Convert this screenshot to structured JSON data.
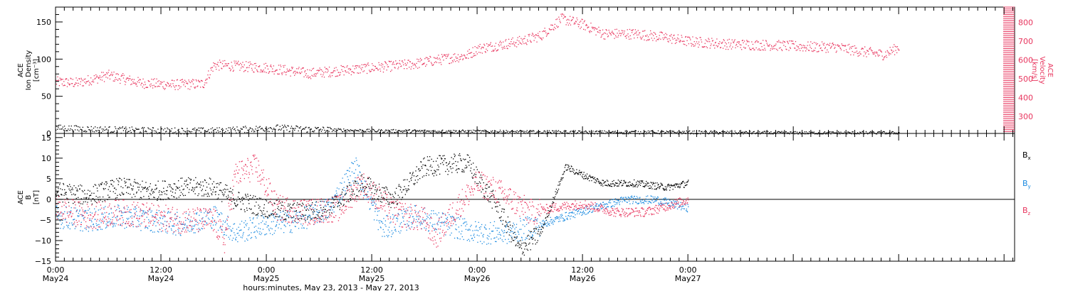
{
  "chart_data": [
    {
      "type": "scatter",
      "panel": "top",
      "ylabel_lines": [
        "ACE",
        "Ion Density",
        "[cm⁻³]"
      ],
      "ylim": [
        0,
        170
      ],
      "y_ticks": [
        "0",
        "50",
        "100",
        "150"
      ],
      "y2label_lines": [
        "ACE",
        "Velocity",
        "[km/s]"
      ],
      "y2lim": [
        210,
        880
      ],
      "y2_ticks": [
        "300",
        "400",
        "500",
        "600",
        "700",
        "800"
      ],
      "x_days_range": [
        0,
        4.55
      ],
      "series": [
        {
          "name": "",
          "color": "#e8355e",
          "axis": "right",
          "x": [
            0.0,
            0.1,
            0.25,
            0.4,
            0.55,
            0.7,
            0.75,
            1.0,
            1.2,
            1.35,
            1.5,
            1.7,
            1.8,
            1.95,
            2.0,
            2.2,
            2.3,
            2.4,
            2.5,
            2.6,
            2.75,
            2.9,
            3.0,
            3.2,
            3.4,
            3.6,
            3.7,
            3.8,
            3.93,
            4.0
          ],
          "y": [
            485,
            480,
            520,
            480,
            470,
            475,
            575,
            560,
            530,
            545,
            560,
            580,
            600,
            625,
            660,
            700,
            730,
            820,
            790,
            740,
            740,
            720,
            700,
            685,
            680,
            670,
            670,
            650,
            630,
            670
          ]
        },
        {
          "name": "",
          "color": "#000000",
          "axis": "left",
          "x": [
            0.0,
            0.2,
            0.5,
            0.75,
            1.05,
            1.2,
            1.5,
            2.0,
            2.5,
            3.0,
            3.5,
            4.0
          ],
          "y": [
            8,
            6,
            4,
            4,
            8,
            6,
            4,
            3,
            2,
            2,
            1,
            1
          ]
        }
      ]
    },
    {
      "type": "scatter",
      "panel": "bottom",
      "ylabel_lines": [
        "ACE",
        "B",
        "[nT]"
      ],
      "ylim": [
        -15,
        16
      ],
      "y_ticks": [
        "−15",
        "−10",
        "−5",
        "0",
        "5",
        "10",
        "15"
      ],
      "x_days_range": [
        0,
        4.55
      ],
      "x_tick_labels": [
        {
          "day": 0,
          "line1": "0:00",
          "line2": "May24"
        },
        {
          "day": 0.5,
          "line1": "12:00",
          "line2": "May24"
        },
        {
          "day": 1,
          "line1": "0:00",
          "line2": "May25"
        },
        {
          "day": 1.5,
          "line1": "12:00",
          "line2": "May25"
        },
        {
          "day": 2,
          "line1": "0:00",
          "line2": "May26"
        },
        {
          "day": 2.5,
          "line1": "12:00",
          "line2": "May26"
        },
        {
          "day": 3,
          "line1": "0:00",
          "line2": "May27"
        }
      ],
      "xlabel": "hours:minutes, May 23, 2013 - May 27, 2013",
      "legend": [
        "Bx",
        "By",
        "Bz"
      ],
      "series": [
        {
          "name": "Bx",
          "color": "#000000",
          "x": [
            0.0,
            0.15,
            0.3,
            0.45,
            0.6,
            0.75,
            0.85,
            1.0,
            1.1,
            1.2,
            1.3,
            1.45,
            1.6,
            1.75,
            1.95,
            2.1,
            2.2,
            2.3,
            2.42,
            2.5,
            2.6,
            2.75,
            2.9,
            3.0
          ],
          "y": [
            2,
            1,
            3,
            2,
            3,
            3,
            0,
            -2,
            -3,
            -3,
            -2,
            4,
            0,
            8,
            9,
            -2,
            -12,
            -8,
            8,
            6,
            4,
            4,
            3,
            4
          ]
        },
        {
          "name": "By",
          "color": "#1a8ae0",
          "x": [
            0.0,
            0.15,
            0.3,
            0.45,
            0.6,
            0.75,
            0.85,
            1.0,
            1.15,
            1.3,
            1.42,
            1.55,
            1.7,
            1.85,
            2.0,
            2.15,
            2.3,
            2.42,
            2.55,
            2.7,
            2.85,
            3.0
          ],
          "y": [
            -4,
            -5,
            -4,
            -5,
            -6,
            -4,
            -8,
            -6,
            -5,
            -2,
            8,
            -7,
            -4,
            -6,
            -8,
            -8,
            -6,
            -4,
            -2,
            0,
            0,
            -2
          ]
        },
        {
          "name": "Bz",
          "color": "#e8355e",
          "x": [
            0.0,
            0.15,
            0.3,
            0.45,
            0.6,
            0.75,
            0.8,
            0.85,
            0.95,
            1.05,
            1.2,
            1.35,
            1.45,
            1.6,
            1.75,
            1.8,
            1.9,
            2.0,
            2.1,
            2.25,
            2.35,
            2.5,
            2.65,
            2.8,
            3.0
          ],
          "y": [
            -2,
            -4,
            -3,
            -4,
            -5,
            -5,
            -10,
            6,
            8,
            -2,
            -3,
            -2,
            4,
            -3,
            -5,
            -9,
            -2,
            4,
            2,
            -3,
            -2,
            -1,
            -3,
            -3,
            0
          ]
        }
      ]
    }
  ]
}
